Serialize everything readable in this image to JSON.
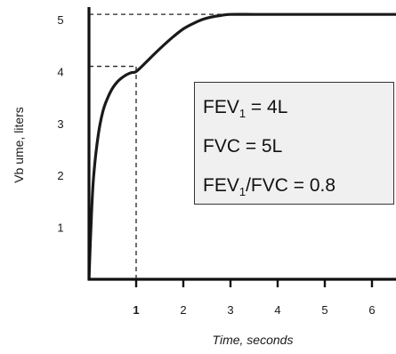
{
  "chart_data": {
    "type": "line",
    "title": "",
    "xlabel": "Time, seconds",
    "ylabel": "Vb ume, liters",
    "xlim": [
      0,
      6.5
    ],
    "ylim": [
      0,
      5.5
    ],
    "x_ticks": [
      "1",
      "2",
      "3",
      "4",
      "5",
      "6"
    ],
    "y_ticks": [
      "1",
      "2",
      "3",
      "4",
      "5"
    ],
    "grid": false,
    "legend": "none",
    "series": [
      {
        "x": [
          0,
          0.05,
          0.1,
          0.2,
          0.3,
          0.4,
          0.5,
          0.6,
          0.7,
          0.8,
          0.9,
          1.0,
          1.2,
          1.4,
          1.6,
          1.8,
          2.0,
          2.2,
          2.4,
          2.6,
          2.8,
          3.0,
          3.5,
          4.0,
          5.0,
          6.0,
          6.5
        ],
        "y": [
          0,
          1.2,
          2.0,
          2.8,
          3.25,
          3.5,
          3.68,
          3.8,
          3.88,
          3.94,
          3.98,
          4.0,
          4.17,
          4.35,
          4.52,
          4.68,
          4.82,
          4.92,
          5.0,
          5.05,
          5.08,
          5.1,
          5.1,
          5.1,
          5.1,
          5.1,
          5.1
        ]
      }
    ],
    "reference_lines": [
      {
        "kind": "horizontal",
        "y": 5.1,
        "x_from": 0,
        "x_to": 3
      },
      {
        "kind": "horizontal",
        "y": 4.1,
        "x_from": 0,
        "x_to": 1
      },
      {
        "kind": "vertical",
        "x": 1,
        "y_from": 0,
        "y_to": 4.1
      }
    ],
    "annotation": {
      "lines": [
        {
          "main": "FEV",
          "sub": "1",
          "rest": " = 4L"
        },
        {
          "main": "FVC  = 5L",
          "sub": "",
          "rest": ""
        },
        {
          "main": "FEV",
          "sub": "1",
          "rest": "/FVC = 0.8"
        }
      ]
    },
    "colors": {
      "curve": "#1a1a1a",
      "axis": "#111111",
      "box_fill": "#f0f0f0"
    }
  }
}
